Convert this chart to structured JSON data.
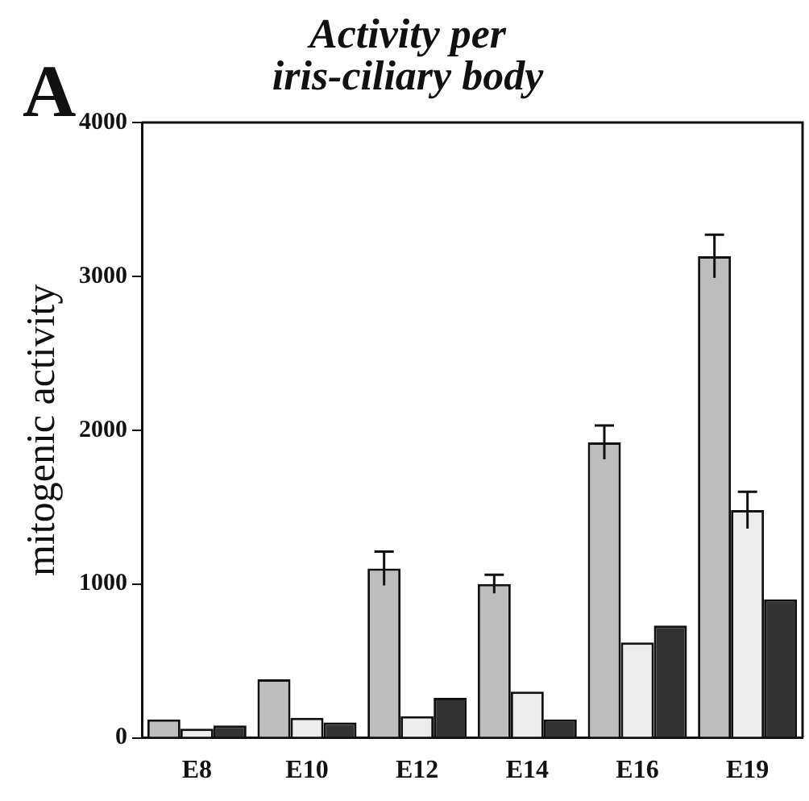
{
  "chart_data": {
    "type": "bar",
    "title": "Activity per\niris-ciliary body",
    "ylabel": "mitogenic activity",
    "annotations": [
      "A"
    ],
    "categories": [
      "E8",
      "E10",
      "E12",
      "E14",
      "E16",
      "E19"
    ],
    "series": [
      {
        "color": "#bdbdbd",
        "values": [
          120,
          380,
          1100,
          1000,
          1920,
          3130
        ],
        "errors": [
          null,
          null,
          110,
          60,
          110,
          140
        ]
      },
      {
        "color": "#ececec",
        "values": [
          60,
          130,
          140,
          300,
          620,
          1480
        ],
        "errors": [
          null,
          null,
          null,
          null,
          null,
          120
        ]
      },
      {
        "color": "#333333",
        "values": [
          80,
          100,
          260,
          120,
          730,
          900
        ]
      }
    ],
    "ylim": [
      0,
      4000
    ],
    "yticks": [
      0,
      1000,
      2000,
      3000,
      4000
    ],
    "grid": false,
    "legend": false
  }
}
